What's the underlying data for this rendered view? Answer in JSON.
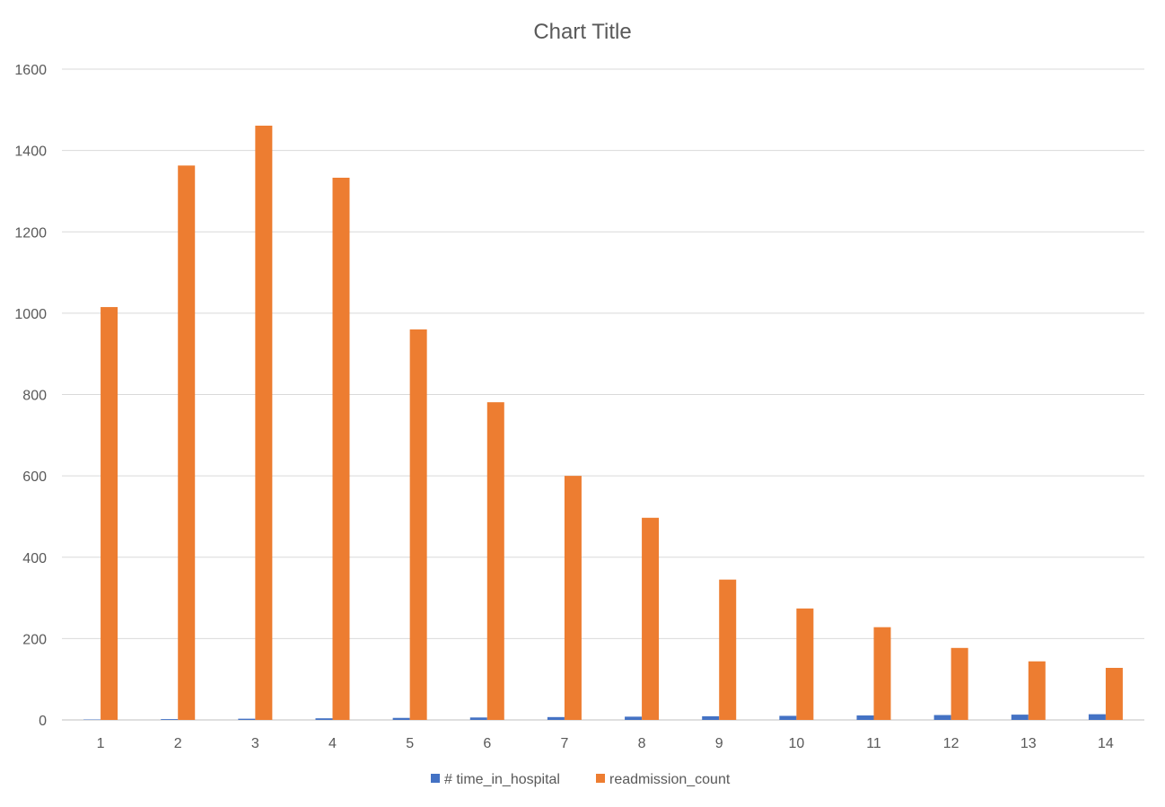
{
  "chart_data": {
    "type": "bar",
    "title": "Chart Title",
    "xlabel": "",
    "ylabel": "",
    "categories": [
      "1",
      "2",
      "3",
      "4",
      "5",
      "6",
      "7",
      "8",
      "9",
      "10",
      "11",
      "12",
      "13",
      "14"
    ],
    "series": [
      {
        "name": "# time_in_hospital",
        "color": "#4472c4",
        "values": [
          1,
          2,
          3,
          4,
          5,
          6,
          7,
          8,
          9,
          10,
          11,
          12,
          13,
          14
        ]
      },
      {
        "name": "readmission_count",
        "color": "#ed7d31",
        "values": [
          1015,
          1363,
          1461,
          1333,
          960,
          781,
          600,
          497,
          345,
          274,
          228,
          177,
          144,
          128
        ]
      }
    ],
    "ylim": [
      0,
      1600
    ],
    "yticks": [
      0,
      200,
      400,
      600,
      800,
      1000,
      1200,
      1400,
      1600
    ],
    "grid": true,
    "legend_position": "bottom"
  }
}
